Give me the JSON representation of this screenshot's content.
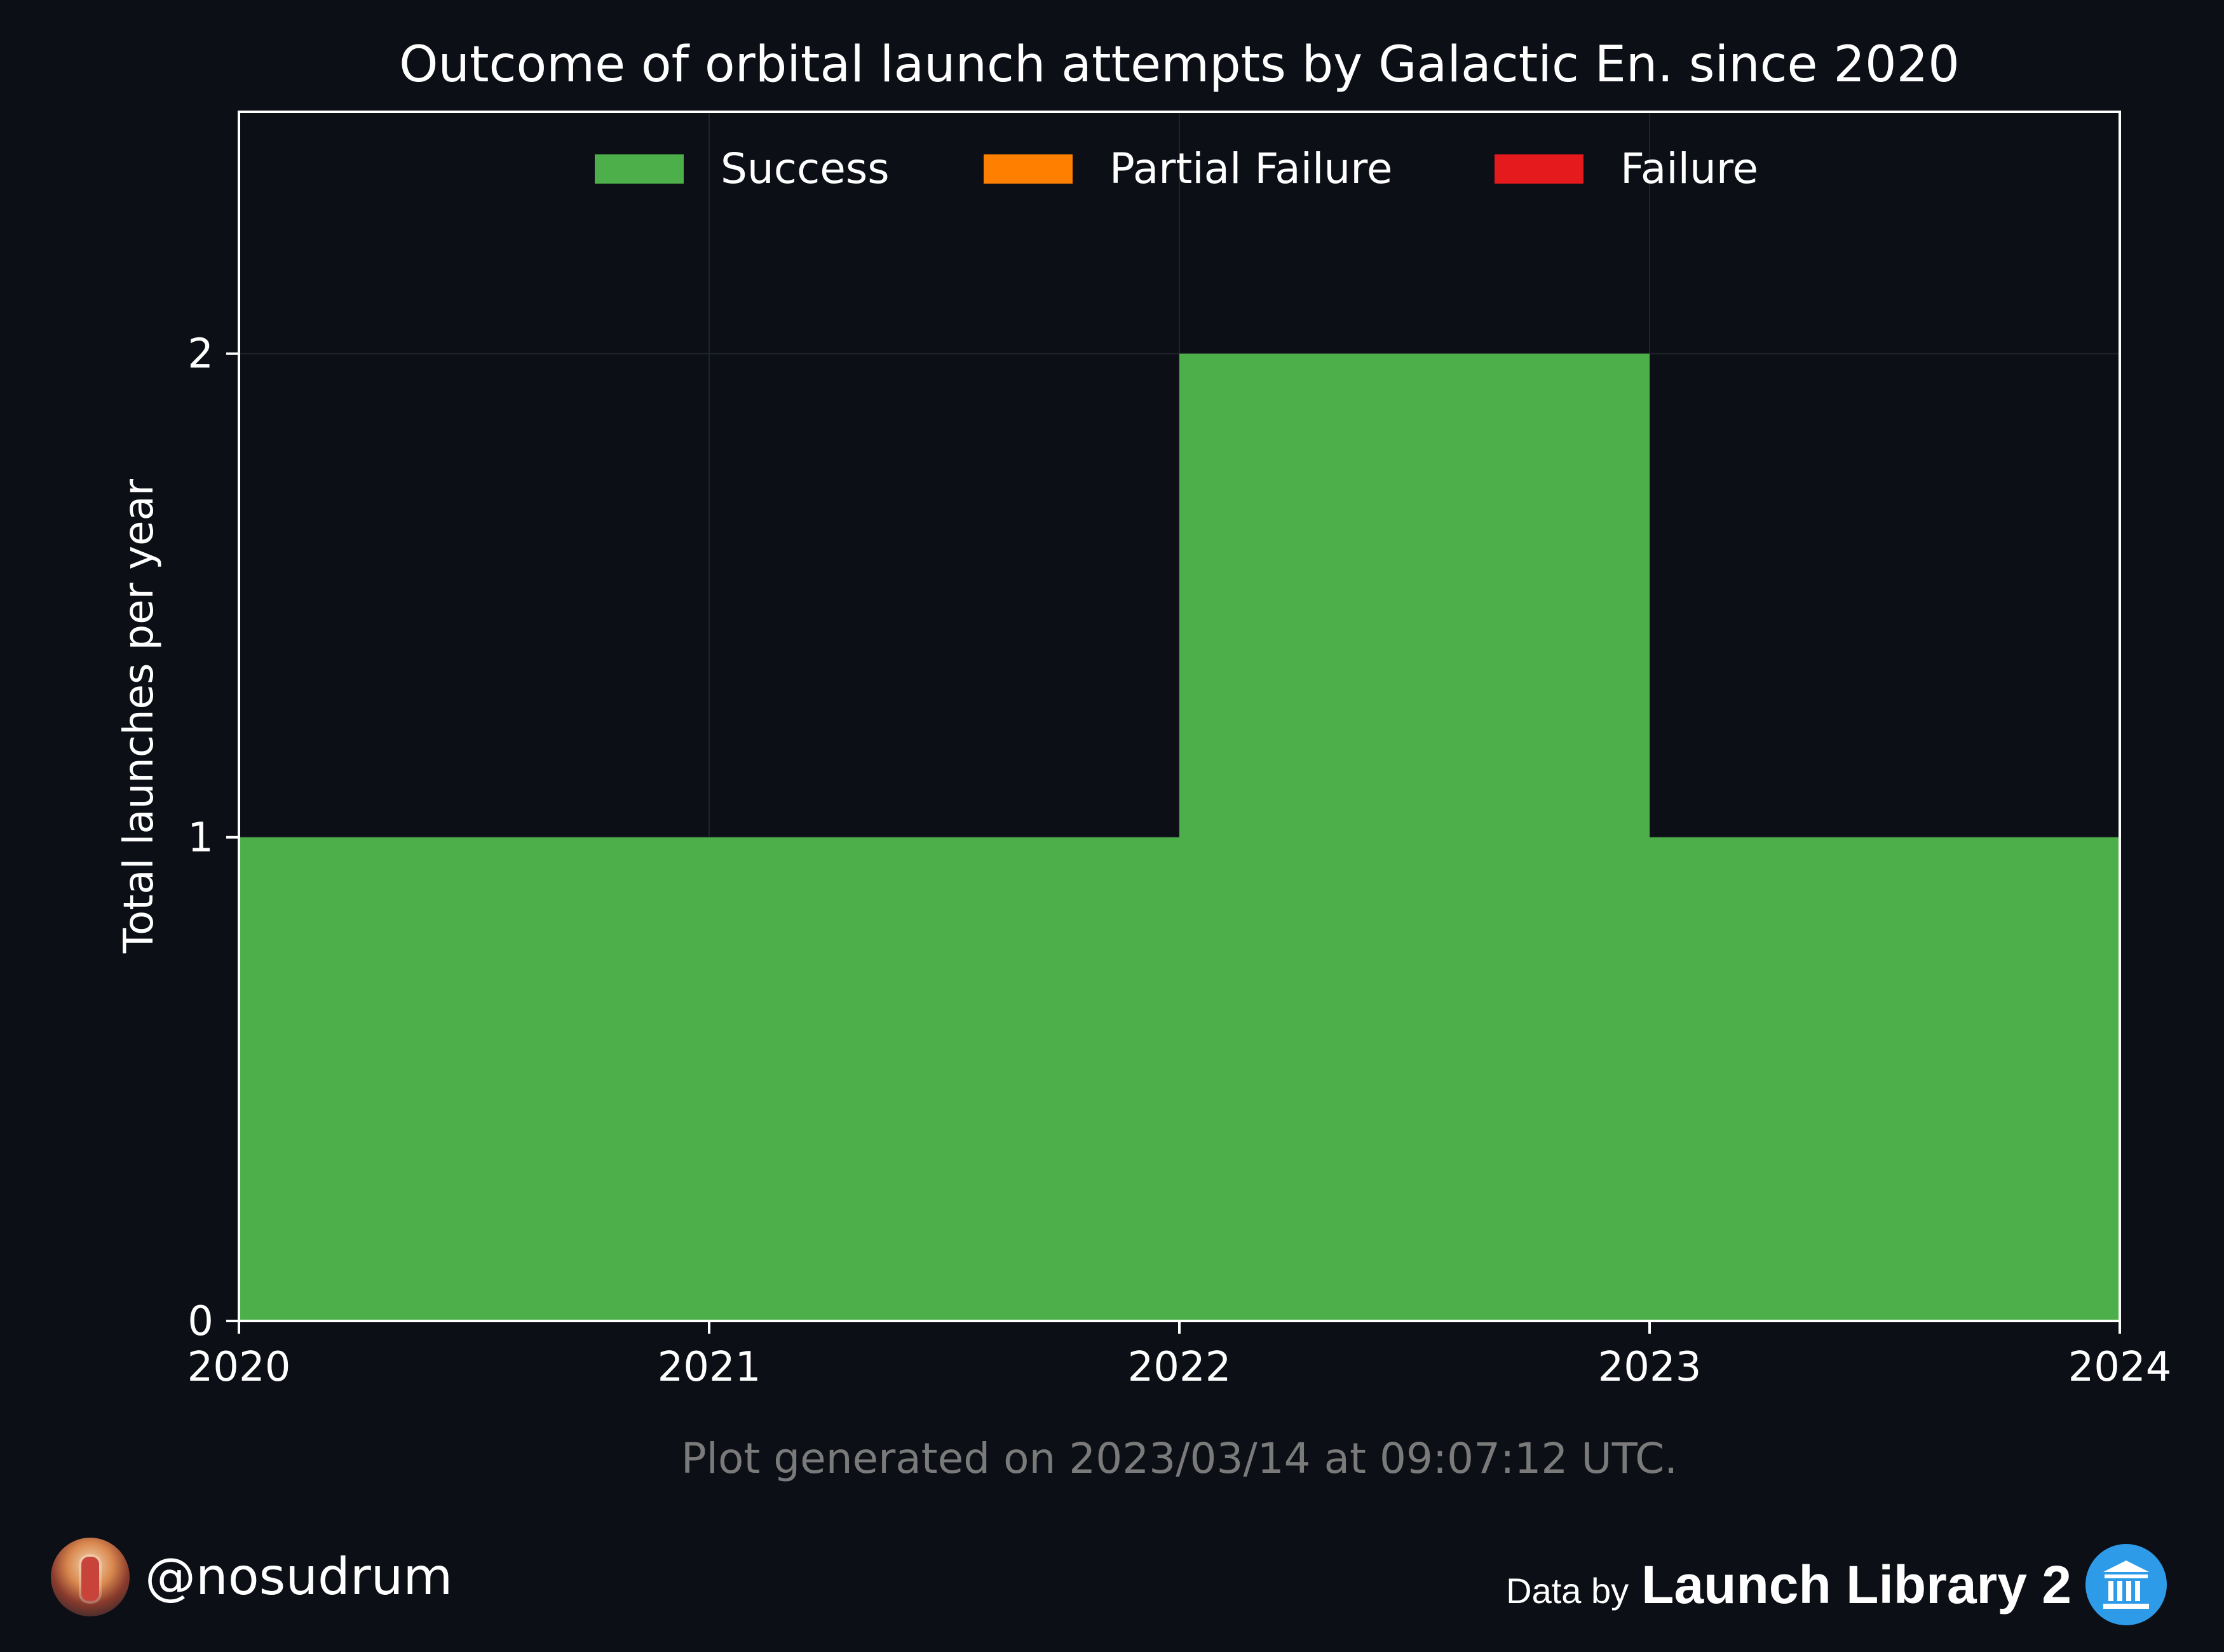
{
  "chart_data": {
    "type": "area",
    "title": "Outcome of orbital launch attempts by Galactic En. since 2020",
    "xlabel": "",
    "ylabel": "Total launches per year",
    "x_ticks": [
      "2020",
      "2021",
      "2022",
      "2023",
      "2024"
    ],
    "y_ticks": [
      "0",
      "1",
      "2"
    ],
    "xlim": [
      2020,
      2024
    ],
    "ylim": [
      0,
      2.5
    ],
    "step": "post",
    "x": [
      2020,
      2021,
      2022,
      2023
    ],
    "series": [
      {
        "name": "Success",
        "values": [
          1,
          1,
          2,
          1
        ],
        "color": "#4daf4a"
      },
      {
        "name": "Partial Failure",
        "values": [
          0,
          0,
          0,
          0
        ],
        "color": "#ff7f00"
      },
      {
        "name": "Failure",
        "values": [
          0,
          0,
          0,
          0
        ],
        "color": "#e41a1c"
      }
    ],
    "legend_position": "top-center",
    "grid": true
  },
  "footnote": "Plot generated on 2023/03/14 at 09:07:12 UTC.",
  "footer": {
    "handle": "@nosudrum",
    "credit_prefix": "Data by",
    "credit_brand": "Launch Library 2"
  },
  "colors": {
    "background": "#0c0f16",
    "axes": "#ffffff",
    "grid": "#1f232b",
    "footnote": "#7a7a7a"
  },
  "icons": {
    "avatar": "astronaut-avatar",
    "credit": "museum-icon"
  }
}
